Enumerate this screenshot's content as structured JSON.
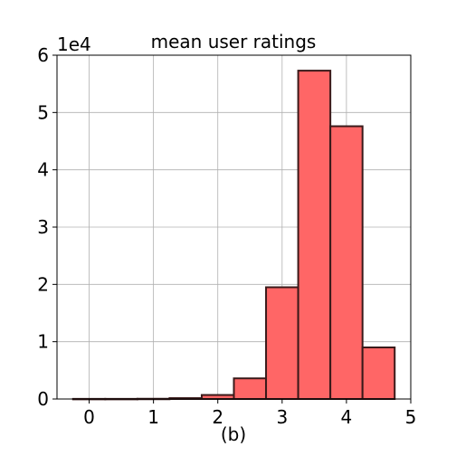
{
  "chart_data": {
    "type": "bar",
    "title": "mean user ratings",
    "xlabel": "(b)",
    "ylabel": "",
    "y_multiplier_label": "1e4",
    "bins": [
      {
        "x0": -0.25,
        "x1": 0.25,
        "value": 20
      },
      {
        "x0": 0.25,
        "x1": 0.75,
        "value": 20
      },
      {
        "x0": 0.75,
        "x1": 1.25,
        "value": 40
      },
      {
        "x0": 1.25,
        "x1": 1.75,
        "value": 150
      },
      {
        "x0": 1.75,
        "x1": 2.25,
        "value": 700
      },
      {
        "x0": 2.25,
        "x1": 2.75,
        "value": 3600
      },
      {
        "x0": 2.75,
        "x1": 3.25,
        "value": 19500
      },
      {
        "x0": 3.25,
        "x1": 3.75,
        "value": 57300
      },
      {
        "x0": 3.75,
        "x1": 4.25,
        "value": 47600
      },
      {
        "x0": 4.25,
        "x1": 4.75,
        "value": 9000
      }
    ],
    "xlim": [
      -0.5,
      5
    ],
    "ylim": [
      0,
      60000
    ],
    "xticks": [
      0,
      1,
      2,
      3,
      4,
      5
    ],
    "xtick_labels": [
      "0",
      "1",
      "2",
      "3",
      "4",
      "5"
    ],
    "yticks": [
      0,
      10000,
      20000,
      30000,
      40000,
      50000,
      60000
    ],
    "ytick_labels": [
      "0",
      "1",
      "2",
      "3",
      "4",
      "5",
      "6"
    ],
    "grid": true,
    "bar_color": "#ff6666",
    "edge_color": "#3a1a1a"
  }
}
